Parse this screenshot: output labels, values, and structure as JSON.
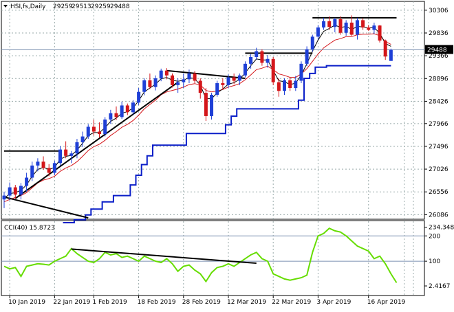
{
  "chart_data": [
    {
      "type": "candlestick",
      "header": {
        "symbol": "HSI,fs,Daily",
        "open": "29259",
        "high": "29513",
        "low": "29259",
        "close": "29488"
      },
      "last_price_label": "29488",
      "y_ticks": [
        "30306",
        "29836",
        "29366",
        "28896",
        "28426",
        "27966",
        "27496",
        "27026",
        "26556",
        "26086"
      ],
      "y_tick_values": [
        30306,
        29836,
        29366,
        28896,
        28426,
        27966,
        27496,
        27026,
        26556,
        26086
      ],
      "ylim": [
        26020,
        30460
      ],
      "x_labels": [
        "10 Jan 2019",
        "22 Jan 2019",
        "1 Feb 2019",
        "18 Feb 2019",
        "28 Feb 2019",
        "12 Mar 2019",
        "22 Mar 2019",
        "3 Apr 2019",
        "16 Apr 2019"
      ],
      "x_label_index": [
        1,
        9,
        16,
        24,
        32,
        40,
        48,
        56,
        65
      ],
      "grid": true,
      "colors": {
        "up": "#1e3fd6",
        "down": "#d4161a",
        "ma_fast": "#000000",
        "ma_slow": "#d4161a",
        "trail": "#0a1ec8",
        "trendline": "#000000"
      },
      "candles": [
        [
          26400,
          26560,
          26220,
          26480
        ],
        [
          26480,
          26750,
          26380,
          26650
        ],
        [
          26650,
          26700,
          26420,
          26500
        ],
        [
          26500,
          26740,
          26400,
          26680
        ],
        [
          26680,
          26950,
          26560,
          26850
        ],
        [
          26850,
          27180,
          26780,
          27100
        ],
        [
          27100,
          27250,
          26980,
          27180
        ],
        [
          27180,
          27290,
          27010,
          27050
        ],
        [
          27050,
          27130,
          26880,
          26950
        ],
        [
          26950,
          27200,
          26900,
          27150
        ],
        [
          27150,
          27500,
          27100,
          27430
        ],
        [
          27430,
          27600,
          27250,
          27300
        ],
        [
          27300,
          27400,
          27150,
          27350
        ],
        [
          27350,
          27650,
          27250,
          27580
        ],
        [
          27580,
          27800,
          27480,
          27700
        ],
        [
          27700,
          27950,
          27650,
          27900
        ],
        [
          27900,
          28050,
          27720,
          27800
        ],
        [
          27800,
          27990,
          27680,
          27750
        ],
        [
          27750,
          28100,
          27700,
          28050
        ],
        [
          28050,
          28250,
          27960,
          28180
        ],
        [
          28180,
          28320,
          28040,
          28100
        ],
        [
          28100,
          28420,
          28060,
          28340
        ],
        [
          28340,
          28380,
          28140,
          28200
        ],
        [
          28200,
          28450,
          28150,
          28400
        ],
        [
          28400,
          28700,
          28350,
          28620
        ],
        [
          28620,
          28900,
          28550,
          28860
        ],
        [
          28860,
          29000,
          28680,
          28720
        ],
        [
          28720,
          28960,
          28650,
          28900
        ],
        [
          28900,
          29100,
          28840,
          29060
        ],
        [
          29060,
          29110,
          28880,
          28960
        ],
        [
          28960,
          29000,
          28710,
          28760
        ],
        [
          28760,
          28900,
          28600,
          28820
        ],
        [
          28820,
          29000,
          28700,
          28880
        ],
        [
          28880,
          29080,
          28800,
          29000
        ],
        [
          29000,
          29050,
          28800,
          28850
        ],
        [
          28850,
          28900,
          28480,
          28600
        ],
        [
          28600,
          28700,
          28020,
          28120
        ],
        [
          28120,
          28600,
          28050,
          28560
        ],
        [
          28560,
          28850,
          28520,
          28800
        ],
        [
          28800,
          28900,
          28660,
          28760
        ],
        [
          28760,
          28980,
          28700,
          28920
        ],
        [
          28920,
          29000,
          28780,
          28850
        ],
        [
          28850,
          29000,
          28760,
          28960
        ],
        [
          28960,
          29250,
          28920,
          29200
        ],
        [
          29200,
          29400,
          29100,
          29340
        ],
        [
          29340,
          29530,
          29280,
          29460
        ],
        [
          29460,
          29500,
          29160,
          29220
        ],
        [
          29220,
          29380,
          29120,
          29300
        ],
        [
          29300,
          29340,
          28760,
          28820
        ],
        [
          28820,
          28900,
          28520,
          28640
        ],
        [
          28640,
          28900,
          28560,
          28860
        ],
        [
          28860,
          28920,
          28640,
          28700
        ],
        [
          28700,
          28950,
          28640,
          28850
        ],
        [
          28850,
          29250,
          28800,
          29200
        ],
        [
          29200,
          29560,
          29150,
          29500
        ],
        [
          29500,
          29800,
          29450,
          29760
        ],
        [
          29760,
          30000,
          29700,
          29950
        ],
        [
          29950,
          30150,
          29900,
          30080
        ],
        [
          30080,
          30180,
          29900,
          29960
        ],
        [
          29960,
          30150,
          29850,
          30120
        ],
        [
          30120,
          30180,
          29800,
          29840
        ],
        [
          29840,
          30100,
          29780,
          30050
        ],
        [
          30050,
          30200,
          29780,
          29800
        ],
        [
          29800,
          30150,
          29700,
          30100
        ],
        [
          30100,
          30140,
          29900,
          29950
        ],
        [
          29950,
          30000,
          29880,
          29900
        ],
        [
          29900,
          30050,
          29820,
          29990
        ],
        [
          29990,
          30000,
          29640,
          29680
        ],
        [
          29680,
          29700,
          29280,
          29350
        ],
        [
          29259,
          29513,
          29259,
          29488
        ]
      ],
      "ma_fast": [
        26420,
        26520,
        26540,
        26590,
        26700,
        26880,
        27020,
        27060,
        27020,
        27060,
        27230,
        27290,
        27310,
        27420,
        27560,
        27720,
        27780,
        27780,
        27880,
        28010,
        28080,
        28180,
        28210,
        28290,
        28440,
        28620,
        28700,
        28780,
        28890,
        28920,
        28860,
        28840,
        28860,
        28920,
        28890,
        28760,
        28480,
        28480,
        28600,
        28680,
        28780,
        28810,
        28880,
        29010,
        29160,
        29300,
        29280,
        29280,
        29060,
        28850,
        28830,
        28770,
        28800,
        28970,
        29200,
        29460,
        29690,
        29870,
        29930,
        30000,
        29950,
        29970,
        29910,
        29970,
        29960,
        29940,
        29950,
        29830,
        29620,
        29560
      ],
      "ma_slow": [
        26350,
        26400,
        26440,
        26480,
        26540,
        26640,
        26740,
        26800,
        26830,
        26880,
        26980,
        27050,
        27100,
        27180,
        27290,
        27410,
        27490,
        27540,
        27620,
        27720,
        27800,
        27890,
        27950,
        28030,
        28140,
        28270,
        28360,
        28450,
        28560,
        28620,
        28650,
        28680,
        28720,
        28770,
        28790,
        28760,
        28650,
        28620,
        28640,
        28670,
        28720,
        28750,
        28790,
        28870,
        28970,
        29080,
        29110,
        29150,
        29080,
        28990,
        28960,
        28920,
        28920,
        28990,
        29100,
        29250,
        29400,
        29530,
        29610,
        29690,
        29720,
        29760,
        29760,
        29800,
        29810,
        29810,
        29820,
        29780,
        29660,
        29600
      ],
      "trail_stop": [
        null,
        null,
        null,
        null,
        null,
        null,
        null,
        null,
        null,
        null,
        null,
        25920,
        25920,
        25980,
        25980,
        26080,
        26200,
        26200,
        26350,
        26350,
        26480,
        26480,
        26480,
        26700,
        26900,
        27120,
        27300,
        27520,
        27520,
        27520,
        27520,
        27520,
        27520,
        27760,
        27760,
        27760,
        27760,
        27760,
        27760,
        27760,
        27940,
        28120,
        28270,
        28270,
        28270,
        28270,
        28270,
        28270,
        28270,
        28270,
        28270,
        28270,
        28270,
        28450,
        28900,
        29000,
        29130,
        29130,
        29160,
        29160,
        29160,
        29160,
        29160,
        29160,
        29160,
        29160,
        29160,
        29160,
        29160,
        29160
      ],
      "trend_lines": [
        {
          "from": [
            0,
            27400
          ],
          "to": [
            10,
            27400
          ]
        },
        {
          "from": [
            2,
            26420
          ],
          "to": [
            31,
            28820
          ]
        },
        {
          "from": [
            0,
            26450
          ],
          "to": [
            15,
            26020
          ]
        },
        {
          "from": [
            29,
            29060
          ],
          "to": [
            43,
            28900
          ]
        },
        {
          "from": [
            43,
            29420
          ],
          "to": [
            55,
            29420
          ]
        },
        {
          "from": [
            55,
            30150
          ],
          "to": [
            70,
            30150
          ]
        }
      ]
    },
    {
      "type": "line",
      "indicator_label": "CCI(40) 15.8723",
      "level_labels": [
        "234.3487",
        "200",
        "100",
        "2.4167"
      ],
      "level_values": [
        234.3487,
        200,
        100,
        2.4167
      ],
      "ylim": [
        -30,
        255
      ],
      "colors": {
        "line": "#66dd00",
        "level": "#7a8fb0",
        "trendline": "#000000"
      },
      "values": [
        80,
        70,
        75,
        40,
        80,
        85,
        90,
        88,
        85,
        100,
        110,
        120,
        150,
        130,
        115,
        100,
        95,
        110,
        135,
        125,
        130,
        115,
        120,
        110,
        100,
        120,
        110,
        100,
        95,
        110,
        90,
        60,
        80,
        85,
        65,
        50,
        20,
        55,
        75,
        80,
        90,
        80,
        95,
        110,
        125,
        135,
        110,
        100,
        50,
        40,
        30,
        25,
        30,
        35,
        45,
        135,
        200,
        210,
        230,
        220,
        215,
        200,
        180,
        160,
        150,
        140,
        110,
        120,
        90,
        50,
        15
      ],
      "trend_line": {
        "from": [
          12,
          148
        ],
        "to": [
          45,
          92
        ]
      }
    }
  ]
}
